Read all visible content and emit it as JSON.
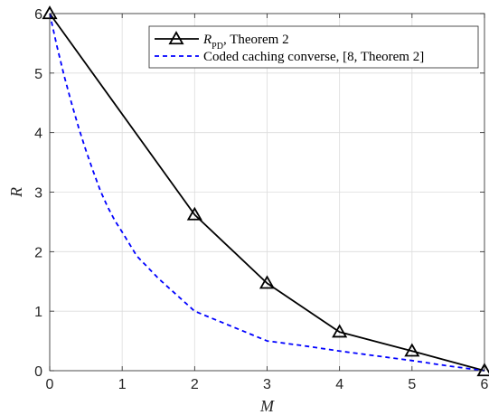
{
  "chart_data": {
    "type": "line",
    "xlabel": "M",
    "ylabel": "R",
    "xlim": [
      0,
      6
    ],
    "ylim": [
      0,
      6
    ],
    "xticks": [
      "0",
      "1",
      "2",
      "3",
      "4",
      "5",
      "6"
    ],
    "yticks": [
      "0",
      "1",
      "2",
      "3",
      "4",
      "5",
      "6"
    ],
    "grid": true,
    "legend_position": "top-right",
    "series": [
      {
        "name": "R",
        "name_subscript": "PD",
        "name_suffix": ", Theorem 2",
        "color": "#000000",
        "line_style": "solid",
        "marker": "triangle",
        "x": [
          0,
          2,
          3,
          4,
          5,
          6
        ],
        "y": [
          6,
          2.62,
          1.47,
          0.65,
          0.33,
          0
        ]
      },
      {
        "name": "Coded caching converse, [8, Theorem 2]",
        "color": "#0000ff",
        "line_style": "dashed",
        "marker": "none",
        "x": [
          0,
          0.1,
          0.2,
          0.3,
          0.4,
          0.5,
          0.6,
          0.7,
          0.8,
          0.9,
          1.0,
          1.2,
          1.5,
          2.0,
          2.5,
          3.0,
          3.5,
          4.0,
          4.5,
          5.0,
          5.5,
          6.0
        ],
        "y": [
          6.0,
          5.45,
          4.95,
          4.5,
          4.08,
          3.7,
          3.35,
          3.02,
          2.75,
          2.52,
          2.33,
          1.93,
          1.55,
          1.0,
          0.75,
          0.5,
          0.42,
          0.33,
          0.25,
          0.17,
          0.08,
          0.0
        ]
      }
    ]
  }
}
